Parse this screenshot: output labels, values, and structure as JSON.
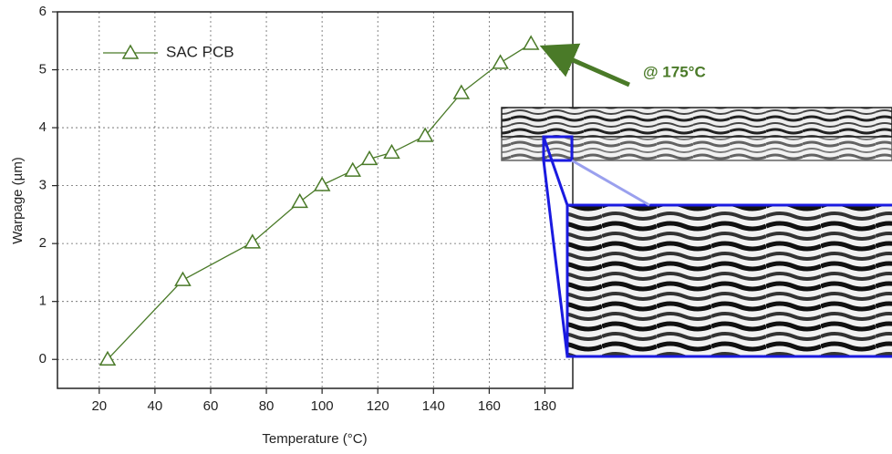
{
  "chart_data": {
    "type": "line",
    "x_label": "Temperature (°C)",
    "y_label": "Warpage (µm)",
    "x": [
      23,
      50,
      75,
      92,
      100,
      111,
      117,
      125,
      137,
      150,
      164,
      175
    ],
    "series": [
      {
        "name": "SAC PCB",
        "color": "#4a7a28",
        "values": [
          0,
          1.37,
          2.02,
          2.72,
          3.01,
          3.26,
          3.46,
          3.57,
          3.86,
          4.6,
          5.12,
          5.45
        ]
      }
    ],
    "xlim": [
      5,
      190
    ],
    "xticks": [
      20,
      40,
      60,
      80,
      100,
      120,
      140,
      160,
      180
    ],
    "ylim": [
      -0.5,
      6
    ],
    "yticks": [
      0,
      1,
      2,
      3,
      4,
      5,
      6
    ],
    "grid": true,
    "legend": "top-left",
    "annotation": "@ 175°C"
  }
}
